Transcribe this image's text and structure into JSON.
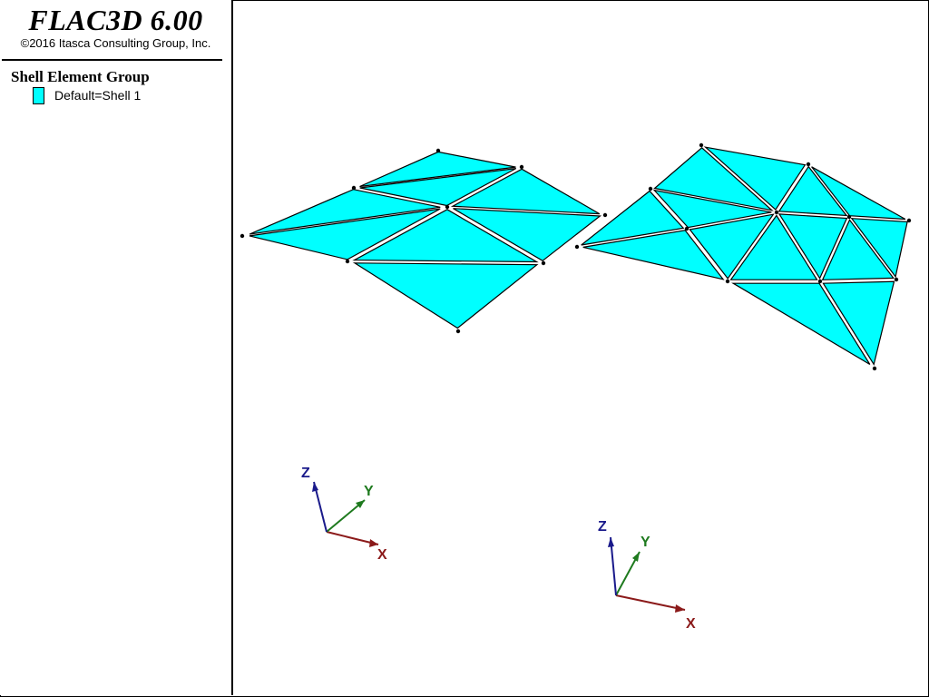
{
  "app": {
    "title": "FLAC3D 6.00",
    "copyright": "©2016 Itasca Consulting Group, Inc."
  },
  "legend": {
    "heading": "Shell Element Group",
    "entries": [
      {
        "label": "Default=Shell 1",
        "color": "#00FFFF"
      }
    ]
  },
  "colors": {
    "shell_fill": "#00FFFF",
    "edge": "#000000",
    "axis_x": "#8B1A1A",
    "axis_y": "#1E7A1E",
    "axis_z": "#1A1A8B"
  },
  "axes": [
    {
      "x_label": "X",
      "y_label": "Y",
      "z_label": "Z"
    },
    {
      "x_label": "X",
      "y_label": "Y",
      "z_label": "Z"
    }
  ]
}
